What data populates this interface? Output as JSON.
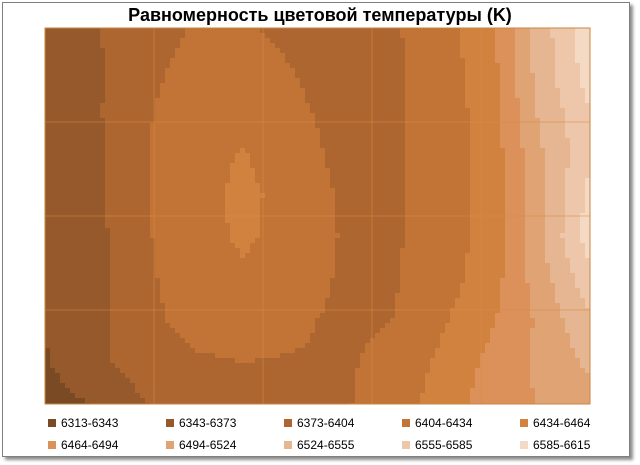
{
  "chart_data": {
    "type": "heatmap",
    "subtype": "contour",
    "title": "Равномерность цветовой температуры (K)",
    "xlabel": "",
    "ylabel": "",
    "grid": true,
    "legend_position": "bottom",
    "bands": [
      {
        "label": "6313-6343",
        "min": 6313,
        "max": 6343,
        "color": "#7a4a24"
      },
      {
        "label": "6343-6373",
        "min": 6343,
        "max": 6373,
        "color": "#96592b"
      },
      {
        "label": "6373-6404",
        "min": 6373,
        "max": 6404,
        "color": "#ad6630"
      },
      {
        "label": "6404-6434",
        "min": 6404,
        "max": 6434,
        "color": "#c27436"
      },
      {
        "label": "6434-6464",
        "min": 6434,
        "max": 6464,
        "color": "#d2823f"
      },
      {
        "label": "6464-6494",
        "min": 6464,
        "max": 6494,
        "color": "#dc915a"
      },
      {
        "label": "6494-6524",
        "min": 6494,
        "max": 6524,
        "color": "#e0a474"
      },
      {
        "label": "6524-6555",
        "min": 6524,
        "max": 6555,
        "color": "#e6b591"
      },
      {
        "label": "6555-6585",
        "min": 6555,
        "max": 6585,
        "color": "#eec7ab"
      },
      {
        "label": "6585-6615",
        "min": 6585,
        "max": 6615,
        "color": "#f4d9c5"
      }
    ],
    "values": [
      [
        6358,
        6371,
        6388,
        6406,
        6408,
        6396,
        6392,
        6400,
        6420,
        6455,
        6540,
        6605
      ],
      [
        6355,
        6368,
        6395,
        6415,
        6418,
        6404,
        6392,
        6398,
        6420,
        6452,
        6538,
        6600
      ],
      [
        6350,
        6368,
        6400,
        6420,
        6425,
        6410,
        6394,
        6400,
        6418,
        6448,
        6530,
        6585
      ],
      [
        6350,
        6366,
        6402,
        6422,
        6436,
        6418,
        6396,
        6400,
        6418,
        6446,
        6520,
        6580
      ],
      [
        6350,
        6364,
        6402,
        6424,
        6440,
        6425,
        6400,
        6400,
        6418,
        6446,
        6515,
        6595
      ],
      [
        6350,
        6363,
        6400,
        6424,
        6438,
        6424,
        6402,
        6400,
        6418,
        6446,
        6520,
        6600
      ],
      [
        6350,
        6362,
        6398,
        6420,
        6430,
        6420,
        6400,
        6400,
        6420,
        6450,
        6510,
        6575
      ],
      [
        6350,
        6364,
        6396,
        6414,
        6418,
        6410,
        6398,
        6404,
        6430,
        6460,
        6500,
        6550
      ],
      [
        6340,
        6366,
        6386,
        6400,
        6404,
        6402,
        6400,
        6412,
        6440,
        6472,
        6500,
        6530
      ],
      [
        6330,
        6345,
        6372,
        6384,
        6386,
        6390,
        6400,
        6420,
        6446,
        6478,
        6496,
        6512
      ]
    ]
  }
}
